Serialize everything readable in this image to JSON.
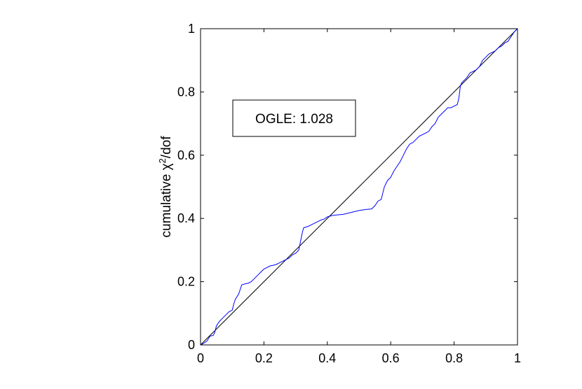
{
  "chart_data": {
    "type": "line",
    "title": "",
    "xlabel": "",
    "ylabel_main": "cumulative χ",
    "ylabel_sup": "2",
    "ylabel_tail": "/dof",
    "xlim": [
      0,
      1
    ],
    "ylim": [
      0,
      1
    ],
    "x_ticks": [
      "0",
      "0.2",
      "0.4",
      "0.6",
      "0.8",
      "1"
    ],
    "y_ticks": [
      "0",
      "0.2",
      "0.4",
      "0.6",
      "0.8",
      "1"
    ],
    "grid": false,
    "annotation": "OGLE: 1.028",
    "reference_line": {
      "x": [
        0,
        1
      ],
      "y": [
        0,
        1
      ],
      "color": "#000000"
    },
    "series": [
      {
        "color": "#0000ff",
        "x": [
          0,
          0.01,
          0.02,
          0.03,
          0.04,
          0.045,
          0.05,
          0.06,
          0.07,
          0.08,
          0.09,
          0.1,
          0.105,
          0.11,
          0.12,
          0.13,
          0.14,
          0.15,
          0.16,
          0.17,
          0.18,
          0.19,
          0.2,
          0.21,
          0.22,
          0.23,
          0.24,
          0.25,
          0.26,
          0.27,
          0.28,
          0.29,
          0.3,
          0.31,
          0.32,
          0.325,
          0.33,
          0.34,
          0.35,
          0.36,
          0.37,
          0.38,
          0.39,
          0.4,
          0.42,
          0.45,
          0.48,
          0.5,
          0.52,
          0.54,
          0.55,
          0.56,
          0.57,
          0.58,
          0.585,
          0.59,
          0.6,
          0.61,
          0.62,
          0.63,
          0.64,
          0.65,
          0.66,
          0.67,
          0.68,
          0.69,
          0.7,
          0.71,
          0.72,
          0.73,
          0.74,
          0.75,
          0.76,
          0.77,
          0.78,
          0.79,
          0.8,
          0.81,
          0.815,
          0.82,
          0.825,
          0.83,
          0.84,
          0.85,
          0.86,
          0.87,
          0.88,
          0.89,
          0.9,
          0.91,
          0.92,
          0.93,
          0.94,
          0.95,
          0.96,
          0.97,
          0.98,
          0.99,
          1.0
        ],
        "y": [
          0,
          0.005,
          0.012,
          0.028,
          0.03,
          0.04,
          0.06,
          0.075,
          0.085,
          0.095,
          0.105,
          0.11,
          0.13,
          0.145,
          0.16,
          0.19,
          0.193,
          0.195,
          0.2,
          0.21,
          0.22,
          0.23,
          0.24,
          0.245,
          0.25,
          0.252,
          0.255,
          0.26,
          0.265,
          0.27,
          0.275,
          0.285,
          0.29,
          0.3,
          0.35,
          0.37,
          0.372,
          0.375,
          0.38,
          0.385,
          0.39,
          0.395,
          0.398,
          0.405,
          0.41,
          0.413,
          0.42,
          0.425,
          0.428,
          0.43,
          0.44,
          0.455,
          0.46,
          0.5,
          0.51,
          0.52,
          0.53,
          0.55,
          0.565,
          0.58,
          0.6,
          0.62,
          0.635,
          0.64,
          0.65,
          0.66,
          0.665,
          0.67,
          0.675,
          0.69,
          0.7,
          0.72,
          0.73,
          0.74,
          0.75,
          0.75,
          0.755,
          0.76,
          0.78,
          0.82,
          0.83,
          0.835,
          0.845,
          0.86,
          0.865,
          0.87,
          0.88,
          0.9,
          0.91,
          0.92,
          0.925,
          0.93,
          0.94,
          0.945,
          0.955,
          0.96,
          0.975,
          0.99,
          1.0
        ]
      }
    ]
  }
}
